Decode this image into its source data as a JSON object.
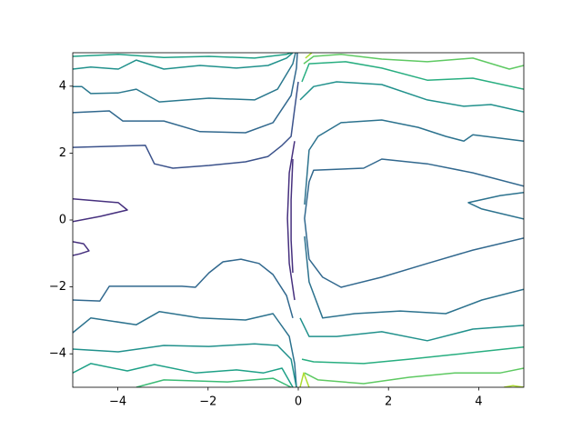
{
  "chart_data": {
    "type": "contour",
    "xlim": [
      -5,
      5
    ],
    "ylim": [
      -5,
      5
    ],
    "xticks": [
      {
        "value": -4,
        "label": "−4"
      },
      {
        "value": -2,
        "label": "−2"
      },
      0,
      2,
      4
    ],
    "yticks": [
      {
        "value": -4,
        "label": "−4"
      },
      {
        "value": -2,
        "label": "−2"
      },
      0,
      2,
      4
    ],
    "series": [
      {
        "color": "#1fa187",
        "x": [
          -5,
          -3.99,
          -2.98,
          -1.98,
          -0.97,
          -0.26,
          -0.16
        ],
        "y": [
          4.89,
          4.95,
          4.86,
          4.89,
          4.84,
          4.95,
          5
        ]
      },
      {
        "color": "#21918c",
        "x": [
          -5,
          -4.6,
          -3.99,
          -3.59,
          -2.98,
          -2.18,
          -1.37,
          -0.67,
          -0.26,
          -0.12
        ],
        "y": [
          4.51,
          4.57,
          4.51,
          4.78,
          4.51,
          4.62,
          4.54,
          4.62,
          4.84,
          5
        ]
      },
      {
        "color": "#2a788e",
        "x": [
          -5,
          -4.8,
          -4.6,
          -3.99,
          -3.59,
          -3.08,
          -1.98,
          -0.97,
          -0.46,
          -0.12,
          -0.06
        ],
        "y": [
          3.99,
          3.99,
          3.78,
          3.8,
          3.91,
          3.53,
          3.64,
          3.59,
          3.91,
          4.67,
          5
        ]
      },
      {
        "color": "#31688e",
        "x": [
          -5,
          -4.19,
          -3.89,
          -2.98,
          -2.18,
          -1.17,
          -0.56,
          -0.16,
          -0.04,
          -0.02
        ],
        "y": [
          3.21,
          3.26,
          2.96,
          2.96,
          2.64,
          2.61,
          2.91,
          3.72,
          4.54,
          5
        ]
      },
      {
        "color": "#3b528b",
        "x": [
          -5,
          -3.39,
          -3.19,
          -2.78,
          -1.98,
          -1.17,
          -0.67,
          -0.36,
          -0.16,
          -0.08,
          0
        ],
        "y": [
          2.17,
          2.23,
          1.68,
          1.55,
          1.63,
          1.74,
          1.9,
          2.23,
          2.5,
          3.32,
          4.13
        ]
      },
      {
        "color": "#46307e",
        "x": [
          -5,
          -3.99,
          -3.79,
          -4.39,
          -5
        ],
        "y": [
          0.63,
          0.52,
          0.3,
          0.11,
          -0.05
        ]
      },
      {
        "color": "#46307e",
        "x": [
          -5,
          -4.76,
          -4.64,
          -4.84,
          -5
        ],
        "y": [
          -0.65,
          -0.71,
          -0.92,
          -1.01,
          -1.06
        ]
      },
      {
        "color": "#46307e",
        "x": [
          -0.08,
          -0.2,
          -0.24,
          -0.2,
          -0.08
        ],
        "y": [
          2.36,
          1.41,
          0.05,
          -1.3,
          -2.39
        ]
      },
      {
        "color": "#46307e",
        "x": [
          -0.12,
          -0.16,
          -0.16,
          -0.12
        ],
        "y": [
          1.82,
          0.6,
          -0.6,
          -1.58
        ]
      },
      {
        "color": "#31688e",
        "x": [
          -5,
          -4.4,
          -4.19,
          -2.58,
          -2.28,
          -1.98,
          -1.67,
          -1.27,
          -0.87,
          -0.56,
          -0.26,
          -0.12
        ],
        "y": [
          -2.39,
          -2.42,
          -1.98,
          -1.98,
          -2.01,
          -1.58,
          -1.25,
          -1.17,
          -1.3,
          -1.63,
          -2.26,
          -2.93
        ]
      },
      {
        "color": "#2c728e",
        "x": [
          -5,
          -4.6,
          -3.59,
          -3.08,
          -2.18,
          -1.17,
          -0.56,
          -0.2,
          -0.08,
          -0.04
        ],
        "y": [
          -3.37,
          -2.93,
          -3.13,
          -2.74,
          -2.93,
          -2.99,
          -2.8,
          -3.48,
          -4.29,
          -5
        ]
      },
      {
        "color": "#21918c",
        "x": [
          -5,
          -3.99,
          -2.98,
          -1.98,
          -0.97,
          -0.46,
          -0.16,
          -0.04
        ],
        "y": [
          -3.86,
          -3.94,
          -3.75,
          -3.78,
          -3.7,
          -3.75,
          -4.16,
          -5
        ]
      },
      {
        "color": "#1fa187",
        "x": [
          -5,
          -4.6,
          -3.79,
          -3.19,
          -2.28,
          -1.37,
          -0.77,
          -0.36,
          -0.12
        ],
        "y": [
          -4.57,
          -4.29,
          -4.51,
          -4.32,
          -4.57,
          -4.48,
          -4.57,
          -4.43,
          -5
        ]
      },
      {
        "color": "#3bbb75",
        "x": [
          -3.59,
          -2.98,
          -1.57,
          -0.56,
          -0.16
        ],
        "y": [
          -5,
          -4.78,
          -4.84,
          -4.73,
          -5
        ]
      },
      {
        "color": "#31688e",
        "x": [
          5,
          3.87,
          2.86,
          1.85,
          1.45,
          0.34,
          0.24,
          0.14,
          0.24,
          0.54,
          0.95,
          1.85,
          2.86,
          3.87,
          5
        ],
        "y": [
          1.01,
          1.41,
          1.68,
          1.82,
          1.55,
          1.49,
          1.14,
          0.05,
          -1.17,
          -1.71,
          -2.01,
          -1.71,
          -1.3,
          -0.9,
          -0.54
        ]
      },
      {
        "color": "#2c728e",
        "x": [
          5,
          4.48,
          3.77,
          4.07,
          5
        ],
        "y": [
          0.82,
          0.73,
          0.52,
          0.33,
          0.03
        ]
      },
      {
        "color": "#2c728e",
        "x": [
          0.14,
          0.24,
          0.44,
          0.95,
          1.85,
          2.66,
          3.27,
          3.67,
          3.87,
          5
        ],
        "y": [
          0.46,
          2.09,
          2.5,
          2.91,
          2.99,
          2.77,
          2.5,
          2.36,
          2.55,
          2.36
        ]
      },
      {
        "color": "#2c728e",
        "x": [
          0.14,
          0.24,
          0.54,
          1.25,
          2.26,
          3.27,
          4.07,
          5
        ],
        "y": [
          -0.49,
          -1.85,
          -2.93,
          -2.8,
          -2.72,
          -2.8,
          -2.39,
          -2.07
        ]
      },
      {
        "color": "#21918c",
        "x": [
          0.04,
          0.34,
          0.85,
          1.85,
          2.86,
          3.67,
          4.27,
          5
        ],
        "y": [
          3.59,
          3.99,
          4.13,
          4.05,
          3.59,
          3.4,
          3.45,
          3.23
        ]
      },
      {
        "color": "#21918c",
        "x": [
          0.04,
          0.24,
          0.85,
          1.85,
          2.86,
          3.87,
          5
        ],
        "y": [
          -2.93,
          -3.48,
          -3.48,
          -3.34,
          -3.61,
          -3.26,
          -3.15
        ]
      },
      {
        "color": "#28ae80",
        "x": [
          0.08,
          0.24,
          1.05,
          1.85,
          2.86,
          3.87,
          5
        ],
        "y": [
          4.13,
          4.67,
          4.73,
          4.54,
          4.18,
          4.24,
          3.91
        ]
      },
      {
        "color": "#28ae80",
        "x": [
          0.08,
          0.34,
          1.45,
          2.46,
          3.47,
          5
        ],
        "y": [
          -4.16,
          -4.24,
          -4.29,
          -4.16,
          -4.02,
          -3.8
        ]
      },
      {
        "color": "#5ec962",
        "x": [
          0.12,
          0.34,
          0.95,
          1.85,
          2.86,
          3.87,
          4.68,
          5
        ],
        "y": [
          4.67,
          4.89,
          4.95,
          4.81,
          4.73,
          4.84,
          4.51,
          4.62
        ]
      },
      {
        "color": "#5ec962",
        "x": [
          0.14,
          0.44,
          1.45,
          2.46,
          3.47,
          4.48,
          5
        ],
        "y": [
          -4.57,
          -4.78,
          -4.89,
          -4.7,
          -4.57,
          -4.57,
          -4.43
        ]
      },
      {
        "color": "#addc30",
        "x": [
          0.16,
          0.3
        ],
        "y": [
          4.84,
          5
        ]
      },
      {
        "color": "#addc30",
        "x": [
          0.04,
          0.12,
          0.24
        ],
        "y": [
          -5,
          -4.57,
          -5
        ]
      },
      {
        "color": "#addc30",
        "x": [
          4.56,
          4.76,
          5
        ],
        "y": [
          -5,
          -4.95,
          -5
        ]
      }
    ]
  }
}
